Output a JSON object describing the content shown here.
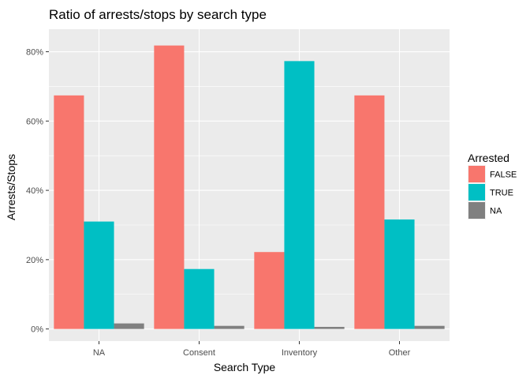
{
  "chart_data": {
    "type": "bar",
    "title": "Ratio of arrests/stops by search type",
    "xlabel": "Search Type",
    "ylabel": "Arrests/Stops",
    "categories": [
      "NA",
      "Consent",
      "Inventory",
      "Other"
    ],
    "ylim": [
      -0.035,
      0.865
    ],
    "yticks": [
      0,
      0.2,
      0.4,
      0.6,
      0.8
    ],
    "ytick_labels": [
      "0%",
      "20%",
      "40%",
      "60%",
      "80%"
    ],
    "legend": {
      "title": "Arrested",
      "placement": "right"
    },
    "series": [
      {
        "name": "FALSE",
        "color": "#F8766D",
        "values": [
          0.674,
          0.818,
          0.222,
          0.674
        ]
      },
      {
        "name": "TRUE",
        "color": "#00BFC4",
        "values": [
          0.31,
          0.173,
          0.773,
          0.316
        ]
      },
      {
        "name": "NA",
        "color": "#808080",
        "values": [
          0.016,
          0.009,
          0.006,
          0.009
        ]
      }
    ],
    "panel_background": "#EBEBEB",
    "grid": true
  }
}
